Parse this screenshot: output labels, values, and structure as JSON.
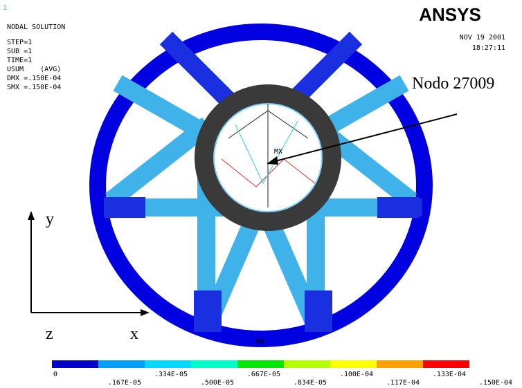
{
  "header": {
    "window": "1",
    "title": "NODAL SOLUTION",
    "lines": [
      "STEP=1",
      "SUB =1",
      "TIME=1",
      "USUM    (AVG)",
      "DMX =.150E-04",
      "SMX =.150E-04"
    ]
  },
  "logo": "ANSYS",
  "date": "NOV 19 2001",
  "time": "18:27:11",
  "annotation": "Nodo 27009",
  "axes": {
    "y": "y",
    "z": "z",
    "x": "x"
  },
  "markers": {
    "max": "MX",
    "min": "MN"
  },
  "legend": {
    "colors": [
      "#0000c8",
      "#00a0ff",
      "#00d8ff",
      "#00ffc8",
      "#00e600",
      "#b4ff00",
      "#ffff00",
      "#ffa000",
      "#ff0000"
    ],
    "labels": [
      "0",
      ".167E-05",
      ".334E-05",
      ".500E-05",
      ".667E-05",
      ".834E-05",
      ".100E-04",
      ".117E-04",
      ".133E-04",
      ".150E-04"
    ]
  }
}
